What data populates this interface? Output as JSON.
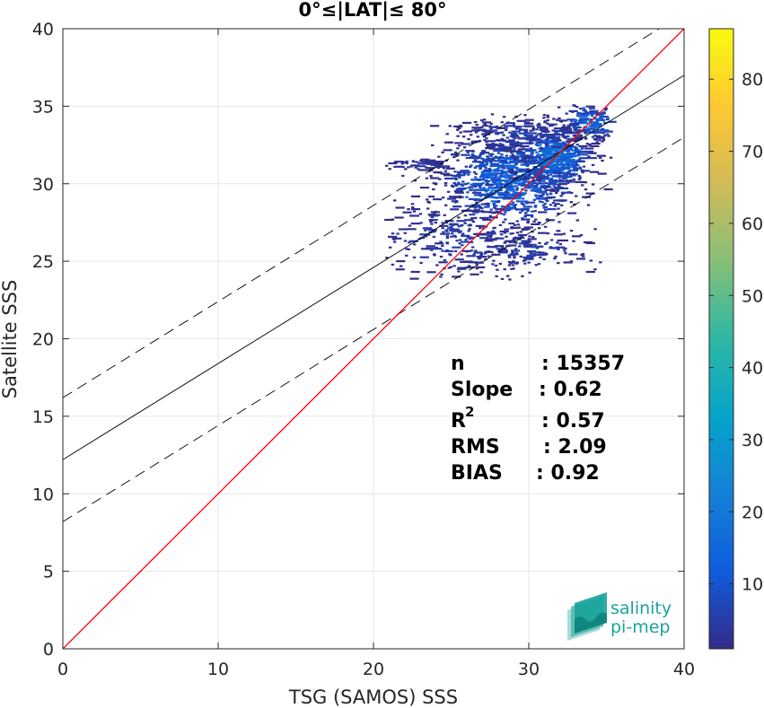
{
  "chart_data": {
    "type": "heatmap",
    "title": "0°≤|LAT|≤ 80°",
    "xlabel": "TSG (SAMOS) SSS",
    "ylabel": "Satellite SSS",
    "xlim": [
      0,
      40
    ],
    "ylim": [
      0,
      40
    ],
    "xticks": [
      "0",
      "10",
      "20",
      "30",
      "40"
    ],
    "yticks": [
      "0",
      "5",
      "10",
      "15",
      "20",
      "25",
      "30",
      "35",
      "40"
    ],
    "grid": true,
    "colorbar": {
      "range": [
        1,
        87
      ],
      "ticks": [
        "10",
        "20",
        "30",
        "40",
        "50",
        "60",
        "70",
        "80"
      ],
      "tick_values": [
        10,
        20,
        30,
        40,
        50,
        60,
        70,
        80
      ]
    },
    "lines": {
      "one_to_one": {
        "slope": 1,
        "intercept": 0,
        "color": "#ff0000"
      },
      "fit": {
        "slope": 0.62,
        "intercept": 12.2,
        "color": "#000000"
      },
      "fit_upper": {
        "slope": 0.62,
        "intercept": 16.2,
        "color": "#000000"
      },
      "fit_lower": {
        "slope": 0.62,
        "intercept": 8.2,
        "color": "#000000"
      }
    },
    "density_clusters": [
      {
        "x": 28.5,
        "y": 30.2,
        "sx": 2.3,
        "sy": 1.6,
        "n": 900,
        "peak": 14
      },
      {
        "x": 31.5,
        "y": 31.8,
        "sx": 1.1,
        "sy": 0.9,
        "n": 450,
        "peak": 22
      },
      {
        "x": 33.8,
        "y": 34.0,
        "sx": 0.9,
        "sy": 0.6,
        "n": 160,
        "peak": 16
      },
      {
        "x": 29.5,
        "y": 33.3,
        "sx": 2.2,
        "sy": 0.5,
        "n": 160,
        "peak": 6
      },
      {
        "x": 25.0,
        "y": 26.5,
        "sx": 2.8,
        "sy": 1.3,
        "n": 260,
        "peak": 5
      },
      {
        "x": 22.5,
        "y": 31.3,
        "sx": 1.5,
        "sy": 0.2,
        "n": 60,
        "peak": 4
      },
      {
        "x": 29.5,
        "y": 25.8,
        "sx": 2.4,
        "sy": 0.7,
        "n": 140,
        "peak": 5
      }
    ]
  },
  "stats": {
    "n_label": "n",
    "n_value": ": 15357",
    "slope_label": "Slope",
    "slope_value": ": 0.62",
    "r2_label": "R",
    "r2_sup": "2",
    "r2_value": ": 0.57",
    "rms_label": "RMS",
    "rms_value": ": 2.09",
    "bias_label": "BIAS",
    "bias_value": ": 0.92"
  },
  "logo": {
    "line1": "salinity",
    "line2": "pi-mep",
    "color": "#1aa39a"
  }
}
